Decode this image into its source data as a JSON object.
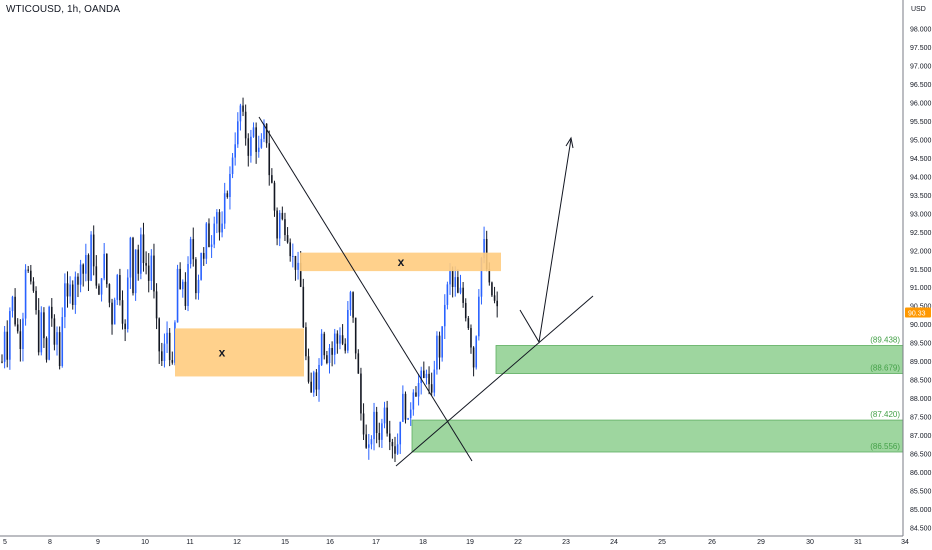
{
  "header": {
    "symbol_label": "WTICOUSD, 1h, OANDA"
  },
  "price_scale": {
    "currency": "USD",
    "current_price_marker": "90.33"
  },
  "colors": {
    "up_candle": "#2962ff",
    "down_candle": "#131722",
    "supply_zone": "#ffcc80",
    "demand_zone": "#8ed08f",
    "demand_zone_border": "#43a047",
    "demand_label": "#43a047",
    "trendline": "#131722",
    "current_price_bg": "#ff9800"
  },
  "chart_data": {
    "type": "candlestick",
    "title": "WTICOUSD, 1h, OANDA",
    "ylabel": "USD",
    "ylim": [
      84.5,
      98.7
    ],
    "y_ticks": [
      "84.500",
      "85.000",
      "85.500",
      "86.000",
      "86.500",
      "87.000",
      "87.500",
      "88.000",
      "88.500",
      "89.000",
      "89.500",
      "90.000",
      "90.500",
      "91.000",
      "91.500",
      "92.000",
      "92.500",
      "93.000",
      "93.500",
      "94.000",
      "94.500",
      "95.000",
      "95.500",
      "96.000",
      "96.500",
      "97.000",
      "97.500",
      "98.000"
    ],
    "x_ticks": [
      "5",
      "8",
      "9",
      "10",
      "11",
      "12",
      "15",
      "16",
      "17",
      "18",
      "19",
      "22",
      "23",
      "24",
      "25",
      "26",
      "29",
      "30",
      "31",
      "34"
    ],
    "price_path": [
      [
        5,
        89.0
      ],
      [
        6,
        89.9
      ],
      [
        7,
        89.2
      ],
      [
        8,
        90.4
      ],
      [
        9,
        90.7
      ],
      [
        10,
        90.1
      ],
      [
        11,
        89.8
      ],
      [
        12,
        89.5
      ],
      [
        13,
        90.3
      ],
      [
        14,
        91.6
      ],
      [
        15,
        91.4
      ],
      [
        16,
        91.0
      ],
      [
        17,
        90.9
      ],
      [
        18,
        90.3
      ],
      [
        19,
        89.4
      ],
      [
        20,
        90.2
      ],
      [
        21,
        89.6
      ],
      [
        22,
        89.0
      ],
      [
        23,
        90.5
      ],
      [
        24,
        90.2
      ],
      [
        25,
        89.3
      ],
      [
        26,
        89.8
      ],
      [
        27,
        88.9
      ],
      [
        28,
        90.3
      ],
      [
        29,
        91.2
      ],
      [
        30,
        90.6
      ],
      [
        31,
        91.0
      ],
      [
        32,
        90.7
      ],
      [
        33,
        91.4
      ],
      [
        34,
        91.0
      ],
      [
        35,
        91.8
      ],
      [
        36,
        91.4
      ],
      [
        37,
        91.9
      ],
      [
        38,
        91.2
      ],
      [
        39,
        92.3
      ],
      [
        40,
        91.7
      ],
      [
        41,
        91.0
      ],
      [
        42,
        90.7
      ],
      [
        43,
        91.4
      ],
      [
        44,
        91.8
      ],
      [
        45,
        91.1
      ],
      [
        46,
        90.6
      ],
      [
        47,
        90.1
      ],
      [
        48,
        90.8
      ],
      [
        49,
        91.3
      ],
      [
        50,
        90.8
      ],
      [
        51,
        90.2
      ],
      [
        52,
        89.8
      ],
      [
        53,
        91.2
      ],
      [
        54,
        92.4
      ],
      [
        55,
        91.0
      ],
      [
        56,
        92.1
      ],
      [
        57,
        91.4
      ],
      [
        58,
        92.3
      ],
      [
        59,
        91.8
      ],
      [
        60,
        91.6
      ],
      [
        61,
        91.2
      ],
      [
        62,
        91.9
      ],
      [
        63,
        90.8
      ],
      [
        64,
        90.0
      ],
      [
        65,
        89.3
      ],
      [
        66,
        89.0
      ],
      [
        67,
        89.4
      ],
      [
        68,
        89.8
      ],
      [
        69,
        89.2
      ],
      [
        70,
        88.8
      ],
      [
        71,
        90.0
      ],
      [
        72,
        91.5
      ],
      [
        73,
        90.8
      ],
      [
        74,
        91.2
      ],
      [
        75,
        90.6
      ],
      [
        76,
        91.5
      ],
      [
        77,
        92.2
      ],
      [
        78,
        91.8
      ],
      [
        79,
        91.0
      ],
      [
        80,
        91.3
      ],
      [
        81,
        92.0
      ],
      [
        82,
        91.7
      ],
      [
        83,
        92.6
      ],
      [
        84,
        92.2
      ],
      [
        85,
        92.3
      ],
      [
        86,
        92.9
      ],
      [
        87,
        93.1
      ],
      [
        88,
        92.5
      ],
      [
        89,
        92.6
      ],
      [
        90,
        93.4
      ],
      [
        91,
        93.6
      ],
      [
        92,
        94.0
      ],
      [
        93,
        94.6
      ],
      [
        94,
        95.0
      ],
      [
        95,
        95.4
      ],
      [
        96,
        95.9
      ],
      [
        97,
        95.6
      ],
      [
        98,
        95.1
      ],
      [
        99,
        94.7
      ],
      [
        100,
        95.0
      ],
      [
        101,
        95.3
      ],
      [
        102,
        94.8
      ],
      [
        103,
        94.7
      ],
      [
        104,
        94.9
      ],
      [
        105,
        95.3
      ],
      [
        106,
        95.0
      ],
      [
        107,
        94.1
      ],
      [
        108,
        93.8
      ],
      [
        109,
        93.1
      ],
      [
        110,
        92.4
      ],
      [
        111,
        93.0
      ],
      [
        112,
        92.8
      ],
      [
        113,
        92.6
      ],
      [
        114,
        92.4
      ],
      [
        115,
        92.0
      ],
      [
        116,
        91.8
      ],
      [
        117,
        91.6
      ],
      [
        118,
        91.5
      ],
      [
        119,
        91.0
      ],
      [
        120,
        90.0
      ],
      [
        121,
        89.1
      ],
      [
        122,
        88.3
      ],
      [
        123,
        88.1
      ],
      [
        124,
        88.8
      ],
      [
        125,
        88.4
      ],
      [
        126,
        88.9
      ],
      [
        127,
        89.9
      ],
      [
        128,
        89.3
      ],
      [
        129,
        89.1
      ],
      [
        130,
        89.4
      ],
      [
        131,
        89.2
      ],
      [
        132,
        89.7
      ],
      [
        133,
        89.5
      ],
      [
        134,
        89.8
      ],
      [
        135,
        89.5
      ],
      [
        136,
        89.3
      ],
      [
        137,
        90.3
      ],
      [
        138,
        90.8
      ],
      [
        139,
        90.1
      ],
      [
        140,
        89.3
      ],
      [
        141,
        88.6
      ],
      [
        142,
        87.6
      ],
      [
        143,
        87.2
      ],
      [
        144,
        86.6
      ],
      [
        145,
        86.6
      ],
      [
        146,
        87.0
      ],
      [
        147,
        87.5
      ],
      [
        148,
        87.1
      ],
      [
        149,
        87.0
      ],
      [
        150,
        87.3
      ],
      [
        151,
        87.9
      ],
      [
        152,
        87.2
      ],
      [
        153,
        87.0
      ],
      [
        154,
        86.8
      ],
      [
        155,
        86.6
      ],
      [
        156,
        86.8
      ],
      [
        157,
        87.5
      ],
      [
        158,
        88.0
      ],
      [
        159,
        87.6
      ],
      [
        160,
        87.3
      ],
      [
        161,
        87.8
      ],
      [
        162,
        88.3
      ],
      [
        163,
        88.2
      ],
      [
        164,
        88.4
      ],
      [
        165,
        88.6
      ],
      [
        166,
        88.5
      ],
      [
        167,
        88.8
      ],
      [
        168,
        88.3
      ],
      [
        169,
        88.0
      ],
      [
        170,
        88.9
      ],
      [
        171,
        89.6
      ],
      [
        172,
        89.2
      ],
      [
        173,
        89.8
      ],
      [
        174,
        90.6
      ],
      [
        175,
        91.0
      ],
      [
        176,
        91.4
      ],
      [
        177,
        91.0
      ],
      [
        178,
        91.2
      ],
      [
        179,
        90.8
      ],
      [
        180,
        90.9
      ],
      [
        181,
        90.6
      ],
      [
        182,
        90.3
      ],
      [
        183,
        90.0
      ],
      [
        184,
        89.5
      ],
      [
        185,
        88.9
      ],
      [
        186,
        89.8
      ],
      [
        187,
        90.9
      ],
      [
        188,
        91.8
      ],
      [
        189,
        92.2
      ],
      [
        190,
        91.5
      ],
      [
        191,
        91.0
      ],
      [
        192,
        90.8
      ],
      [
        193,
        90.6
      ],
      [
        194,
        90.4
      ]
    ],
    "zones": [
      {
        "kind": "supply",
        "label": "x"
      },
      {
        "kind": "supply",
        "label": "x"
      },
      {
        "kind": "demand",
        "top": 89.438,
        "bottom": 88.679,
        "labels": [
          "(89.438)",
          "(88.679)"
        ]
      },
      {
        "kind": "demand",
        "top": 87.42,
        "bottom": 86.556,
        "labels": [
          "(87.420)",
          "(86.556)"
        ]
      }
    ],
    "grid": false,
    "legend": "none"
  }
}
